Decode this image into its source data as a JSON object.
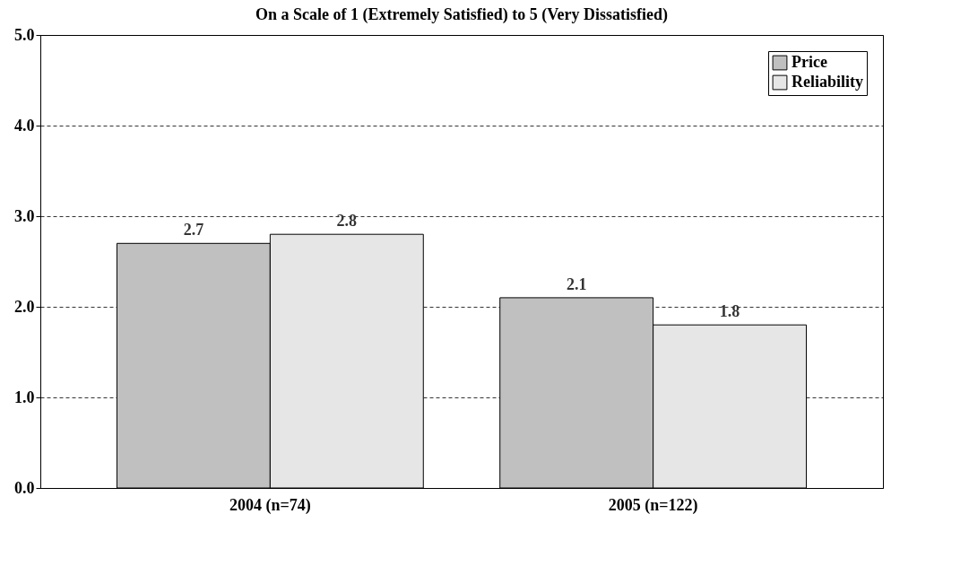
{
  "chart_data": {
    "type": "bar",
    "title": "On a Scale of 1 (Extremely Satisfied) to 5 (Very Dissatisfied)",
    "categories": [
      "2004 (n=74)",
      "2005 (n=122)"
    ],
    "series": [
      {
        "name": "Price",
        "color": "#c0c0c0",
        "values": [
          2.7,
          2.1
        ]
      },
      {
        "name": "Reliability",
        "color": "#e6e6e6",
        "values": [
          2.8,
          1.8
        ]
      }
    ],
    "ylim": [
      0,
      5
    ],
    "yticks": [
      {
        "value": 0,
        "label": "0.0"
      },
      {
        "value": 1,
        "label": "1.0"
      },
      {
        "value": 2,
        "label": "2.0"
      },
      {
        "value": 3,
        "label": "3.0"
      },
      {
        "value": 4,
        "label": "4.0"
      },
      {
        "value": 5,
        "label": "5.0"
      }
    ],
    "grid": "y",
    "line_style": "dashed",
    "data_labels": true,
    "legend": "top right"
  }
}
